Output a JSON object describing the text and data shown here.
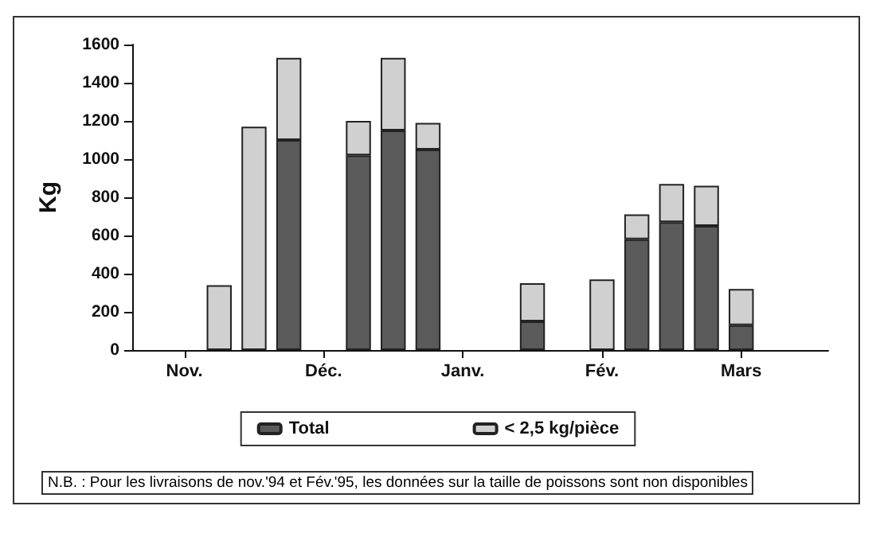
{
  "chart_data": {
    "type": "bar",
    "stacked": true,
    "ylabel": "Kg",
    "categories": [
      null,
      "Nov.",
      null,
      null,
      null,
      "Déc.",
      null,
      null,
      null,
      "Janv.",
      null,
      null,
      null,
      "Fév.",
      null,
      null,
      null,
      "Mars",
      null,
      null
    ],
    "series": [
      {
        "name": "Total",
        "color": "#5a5a5a",
        "values": [
          null,
          null,
          null,
          null,
          1100,
          null,
          1020,
          1150,
          1050,
          null,
          null,
          150,
          null,
          null,
          580,
          670,
          650,
          130,
          null,
          null
        ]
      },
      {
        "name": "< 2,5 kg/pièce",
        "color": "#d0d0d0",
        "values": [
          null,
          null,
          340,
          1170,
          430,
          null,
          180,
          380,
          140,
          null,
          null,
          200,
          null,
          370,
          130,
          200,
          210,
          190,
          null,
          null
        ]
      }
    ],
    "ylim": [
      0,
      1600
    ],
    "yticks": [
      0,
      200,
      400,
      600,
      800,
      1000,
      1200,
      1400,
      1600
    ],
    "grid": false,
    "legend": "bottom",
    "annotations": [
      "N.B. : Pour les livraisons de nov.'94 et Fév.'95, les données sur la taille de poissons sont non disponibles"
    ]
  }
}
